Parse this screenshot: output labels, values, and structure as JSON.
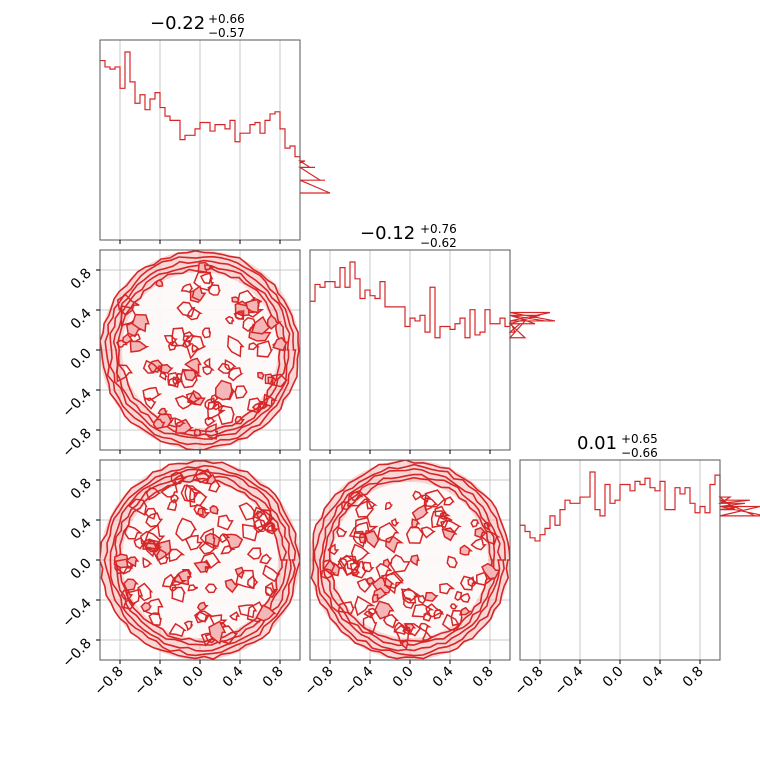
{
  "chart_data": {
    "type": "corner",
    "parameters": 3,
    "color": "#d62728",
    "fill_color": "#f4b6b6",
    "grid": true,
    "range": [
      -1,
      1
    ],
    "tick_values": [
      -0.8,
      -0.4,
      0.0,
      0.4,
      0.8
    ],
    "tick_labels": [
      "−0.8",
      "−0.4",
      "0.0",
      "0.4",
      "0.8"
    ],
    "titles": [
      {
        "median": "−0.22",
        "plus": "+0.66",
        "minus": "−0.57"
      },
      {
        "median": "−0.12",
        "plus": "+0.76",
        "minus": "−0.62"
      },
      {
        "median": "0.01",
        "plus": "+0.65",
        "minus": "−0.66"
      }
    ],
    "histograms": [
      {
        "bin_edges_start": -1.0,
        "bin_width": 0.05,
        "counts": [
          84,
          81,
          80,
          81,
          71,
          88,
          74,
          64,
          68,
          61,
          66,
          69,
          62,
          58,
          56,
          56,
          47,
          49,
          49,
          52,
          55,
          55,
          51,
          54,
          54,
          52,
          56,
          46,
          50,
          50,
          54,
          55,
          50,
          56,
          59,
          60,
          52,
          43,
          44,
          39,
          36,
          37,
          34,
          34,
          28,
          28,
          22
        ]
      },
      {
        "bin_edges_start": -1.0,
        "bin_width": 0.05,
        "counts": [
          53,
          59,
          58,
          60,
          60,
          58,
          65,
          58,
          67,
          61,
          54,
          57,
          55,
          54,
          60,
          51,
          51,
          51,
          51,
          44,
          47,
          46,
          48,
          42,
          58,
          40,
          44,
          44,
          43,
          45,
          47,
          40,
          50,
          41,
          42,
          50,
          45,
          45,
          47,
          44,
          46,
          42,
          45,
          40,
          48,
          45,
          48,
          46,
          49,
          46
        ]
      },
      {
        "bin_edges_start": -1.0,
        "bin_width": 0.05,
        "counts": [
          43,
          41,
          39,
          38,
          40,
          42,
          46,
          43,
          48,
          51,
          50,
          50,
          52,
          52,
          60,
          48,
          46,
          56,
          50,
          51,
          56,
          56,
          54,
          57,
          56,
          58,
          55,
          54,
          57,
          48,
          48,
          55,
          53,
          55,
          50,
          47,
          49,
          47,
          56,
          59,
          51,
          50,
          52,
          48,
          49,
          50,
          51,
          46,
          49,
          46
        ]
      }
    ],
    "contour_panels": [
      {
        "x_param": 1,
        "y_param": 2,
        "support": "unit disk"
      },
      {
        "x_param": 1,
        "y_param": 3,
        "support": "unit disk"
      },
      {
        "x_param": 2,
        "y_param": 3,
        "support": "unit disk"
      }
    ]
  }
}
